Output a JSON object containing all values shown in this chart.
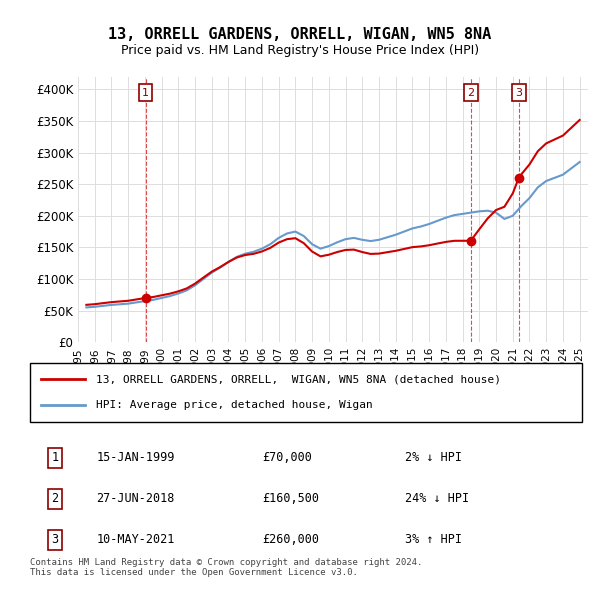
{
  "title": "13, ORRELL GARDENS, ORRELL, WIGAN, WN5 8NA",
  "subtitle": "Price paid vs. HM Land Registry's House Price Index (HPI)",
  "ylabel_ticks": [
    "£0",
    "£50K",
    "£100K",
    "£150K",
    "£200K",
    "£250K",
    "£300K",
    "£350K",
    "£400K"
  ],
  "ylim": [
    0,
    420000
  ],
  "yticks": [
    0,
    50000,
    100000,
    150000,
    200000,
    250000,
    300000,
    350000,
    400000
  ],
  "xmin_year": 1995.0,
  "xmax_year": 2025.5,
  "sale_dates": [
    1999.04,
    2018.49,
    2021.36
  ],
  "sale_prices": [
    70000,
    160500,
    260000
  ],
  "sale_labels": [
    "1",
    "2",
    "3"
  ],
  "hpi_years": [
    1995.5,
    1996.0,
    1996.5,
    1997.0,
    1997.5,
    1998.0,
    1998.5,
    1999.0,
    1999.5,
    2000.0,
    2000.5,
    2001.0,
    2001.5,
    2002.0,
    2002.5,
    2003.0,
    2003.5,
    2004.0,
    2004.5,
    2005.0,
    2005.5,
    2006.0,
    2006.5,
    2007.0,
    2007.5,
    2008.0,
    2008.5,
    2009.0,
    2009.5,
    2010.0,
    2010.5,
    2011.0,
    2011.5,
    2012.0,
    2012.5,
    2013.0,
    2013.5,
    2014.0,
    2014.5,
    2015.0,
    2015.5,
    2016.0,
    2016.5,
    2017.0,
    2017.5,
    2018.0,
    2018.5,
    2019.0,
    2019.5,
    2020.0,
    2020.5,
    2021.0,
    2021.5,
    2022.0,
    2022.5,
    2023.0,
    2023.5,
    2024.0,
    2024.5,
    2025.0
  ],
  "hpi_values": [
    55000,
    56000,
    57500,
    59000,
    60000,
    61000,
    63000,
    65000,
    67000,
    70000,
    73000,
    77000,
    82000,
    90000,
    100000,
    110000,
    118000,
    127000,
    135000,
    140000,
    143000,
    148000,
    155000,
    165000,
    172000,
    175000,
    168000,
    155000,
    148000,
    152000,
    158000,
    163000,
    165000,
    162000,
    160000,
    162000,
    166000,
    170000,
    175000,
    180000,
    183000,
    187000,
    192000,
    197000,
    201000,
    203000,
    205000,
    207000,
    208000,
    205000,
    195000,
    200000,
    215000,
    228000,
    245000,
    255000,
    260000,
    265000,
    275000,
    285000
  ],
  "house_line_color": "#cc0000",
  "hpi_line_color": "#6699cc",
  "sale_dot_color": "#cc0000",
  "vline_color": "#cc0000",
  "grid_color": "#dddddd",
  "background_color": "#ffffff",
  "legend_text_1": "13, ORRELL GARDENS, ORRELL,  WIGAN, WN5 8NA (detached house)",
  "legend_text_2": "HPI: Average price, detached house, Wigan",
  "table_entries": [
    {
      "num": "1",
      "date": "15-JAN-1999",
      "price": "£70,000",
      "hpi": "2% ↓ HPI"
    },
    {
      "num": "2",
      "date": "27-JUN-2018",
      "price": "£160,500",
      "hpi": "24% ↓ HPI"
    },
    {
      "num": "3",
      "date": "10-MAY-2021",
      "price": "£260,000",
      "hpi": "3% ↑ HPI"
    }
  ],
  "footnote": "Contains HM Land Registry data © Crown copyright and database right 2024.\nThis data is licensed under the Open Government Licence v3.0.",
  "xtick_years": [
    1995,
    1996,
    1997,
    1998,
    1999,
    2000,
    2001,
    2002,
    2003,
    2004,
    2005,
    2006,
    2007,
    2008,
    2009,
    2010,
    2011,
    2012,
    2013,
    2014,
    2015,
    2016,
    2017,
    2018,
    2019,
    2020,
    2021,
    2022,
    2023,
    2024,
    2025
  ]
}
